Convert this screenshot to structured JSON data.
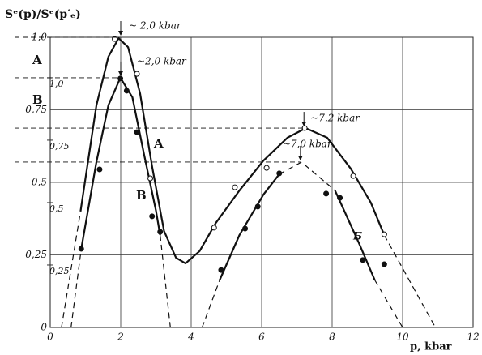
{
  "chart_data": {
    "type": "line",
    "ylabel": "Sᵉ(p)/Sᵉ(p′ₑ)",
    "xlabel": "p, kbar",
    "xlim": [
      0,
      12
    ],
    "xticks": [
      0,
      2,
      4,
      6,
      8,
      10,
      12
    ],
    "ylim": [
      0,
      1.0
    ],
    "yticks": [
      0,
      {
        "value": 0.25,
        "label": "0,25"
      },
      {
        "value": 0.5,
        "label": "0,5"
      },
      {
        "value": 0.75,
        "label": "0,75"
      },
      {
        "value": 1.0,
        "label": "1,0"
      }
    ],
    "y2lim": [
      0,
      1.162
    ],
    "y2ticks": [
      {
        "value": 0.25,
        "label": "0,25"
      },
      {
        "value": 0.5,
        "label": "0,5"
      },
      {
        "value": 0.75,
        "label": "0,75"
      },
      {
        "value": 1.0,
        "label": "1,0"
      }
    ],
    "grid": true,
    "curve_labels": [
      "A",
      "B",
      "A",
      "B",
      "Б"
    ],
    "series": [
      {
        "axis": "y",
        "style": "solid",
        "color": "#111",
        "x": [
          0.86,
          1.31,
          1.65,
          1.94,
          2.21,
          2.55,
          2.89,
          3.23,
          3.57,
          3.84,
          4.24,
          4.7,
          5.37,
          6.05,
          6.73,
          7.25,
          7.86,
          8.53,
          9.1,
          9.48
        ],
        "values": [
          0.4,
          0.765,
          0.933,
          0.997,
          0.966,
          0.807,
          0.556,
          0.332,
          0.24,
          0.221,
          0.263,
          0.36,
          0.472,
          0.575,
          0.654,
          0.687,
          0.654,
          0.547,
          0.43,
          0.318
        ]
      },
      {
        "axis": "y",
        "style": "dashed",
        "color": "#111",
        "x": [
          0.32,
          0.86
        ],
        "values": [
          0,
          0.4
        ]
      },
      {
        "axis": "y",
        "style": "dashed",
        "color": "#111",
        "x": [
          9.48,
          10.93
        ],
        "values": [
          0.318,
          0
        ]
      },
      {
        "axis": "y2",
        "style": "solid",
        "color": "#111",
        "x": [
          0.88,
          1.31,
          1.65,
          1.99,
          2.33,
          2.66,
          3.0,
          3.12,
          null,
          4.81,
          5.37,
          6.05,
          6.5,
          null,
          8.08,
          8.76,
          9.21
        ],
        "values": [
          0.315,
          0.662,
          0.89,
          1.0,
          0.922,
          0.695,
          0.468,
          0.37,
          null,
          0.19,
          0.37,
          0.532,
          0.614,
          null,
          0.549,
          0.338,
          0.19
        ]
      },
      {
        "axis": "y2",
        "style": "dashed",
        "color": "#111",
        "x": [
          0.59,
          0.88,
          null,
          3.12,
          3.41,
          null,
          4.31,
          4.81,
          null,
          6.5,
          7.13,
          8.08,
          null,
          9.21,
          10.0
        ],
        "values": [
          0,
          0.315,
          null,
          0.37,
          0,
          null,
          0,
          0.19,
          null,
          0.614,
          0.662,
          0.549,
          null,
          0.19,
          0
        ]
      },
      {
        "axis": "y",
        "marker": "open",
        "color": "#111",
        "x": [
          1.83,
          2.46,
          2.84,
          4.65,
          5.24,
          6.14,
          7.22,
          8.6,
          9.48
        ],
        "values": [
          0.994,
          0.874,
          0.514,
          0.344,
          0.483,
          0.55,
          0.687,
          0.522,
          0.321
        ]
      },
      {
        "axis": "y2",
        "marker": "filled",
        "color": "#111",
        "x": [
          0.88,
          1.4,
          1.99,
          2.17,
          2.46,
          2.89,
          3.12,
          4.85,
          5.53,
          5.89,
          6.5,
          7.83,
          8.22,
          8.87,
          9.48
        ],
        "values": [
          0.315,
          0.633,
          0.997,
          0.948,
          0.782,
          0.445,
          0.383,
          0.23,
          0.396,
          0.484,
          0.617,
          0.536,
          0.519,
          0.27,
          0.253
        ]
      }
    ],
    "guides": [
      {
        "x": 2.0,
        "y": 1.0,
        "axis": "y",
        "label": "~ 2,0 kbar"
      },
      {
        "x": 2.0,
        "y": 1.0,
        "axis": "y2",
        "label": "~2,0 kbar"
      },
      {
        "x": 7.2,
        "y": 0.687,
        "axis": "y",
        "label": "~7,2 kbar"
      },
      {
        "x": 7.1,
        "y": 0.57,
        "axis": "y",
        "label": "~7,0 kbar"
      }
    ]
  }
}
